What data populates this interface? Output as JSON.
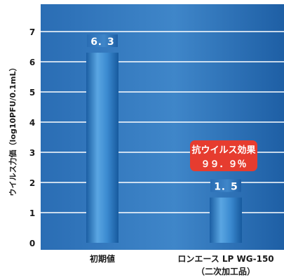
{
  "chart_data": {
    "type": "bar",
    "categories": [
      "初期値",
      "ロンエース LP WG-150"
    ],
    "category_sublabels": [
      "",
      "（二次加工品）"
    ],
    "values": [
      6.3,
      1.5
    ],
    "data_labels": [
      "6．3",
      "1．5"
    ],
    "title": "",
    "xlabel": "",
    "ylabel": "ウイルス力価（log10PFU/0.1mL）",
    "ylim": [
      0,
      7.8
    ],
    "yticks": [
      "0",
      "1",
      "2",
      "3",
      "4",
      "5",
      "6",
      "7"
    ],
    "grid": true,
    "legend": "none",
    "annotation": {
      "line1": "抗ウイルス効果",
      "line2": "９９．９％",
      "color": "#e63c2f"
    },
    "colors": {
      "plot_background": "#1a5fa8",
      "plot_background_light": "#3f86c9",
      "bar": "#1f6fb5",
      "bar_highlight": "#7fc0ef",
      "gridline": "#ffffff",
      "axis_text": "#1a1a1a"
    }
  }
}
